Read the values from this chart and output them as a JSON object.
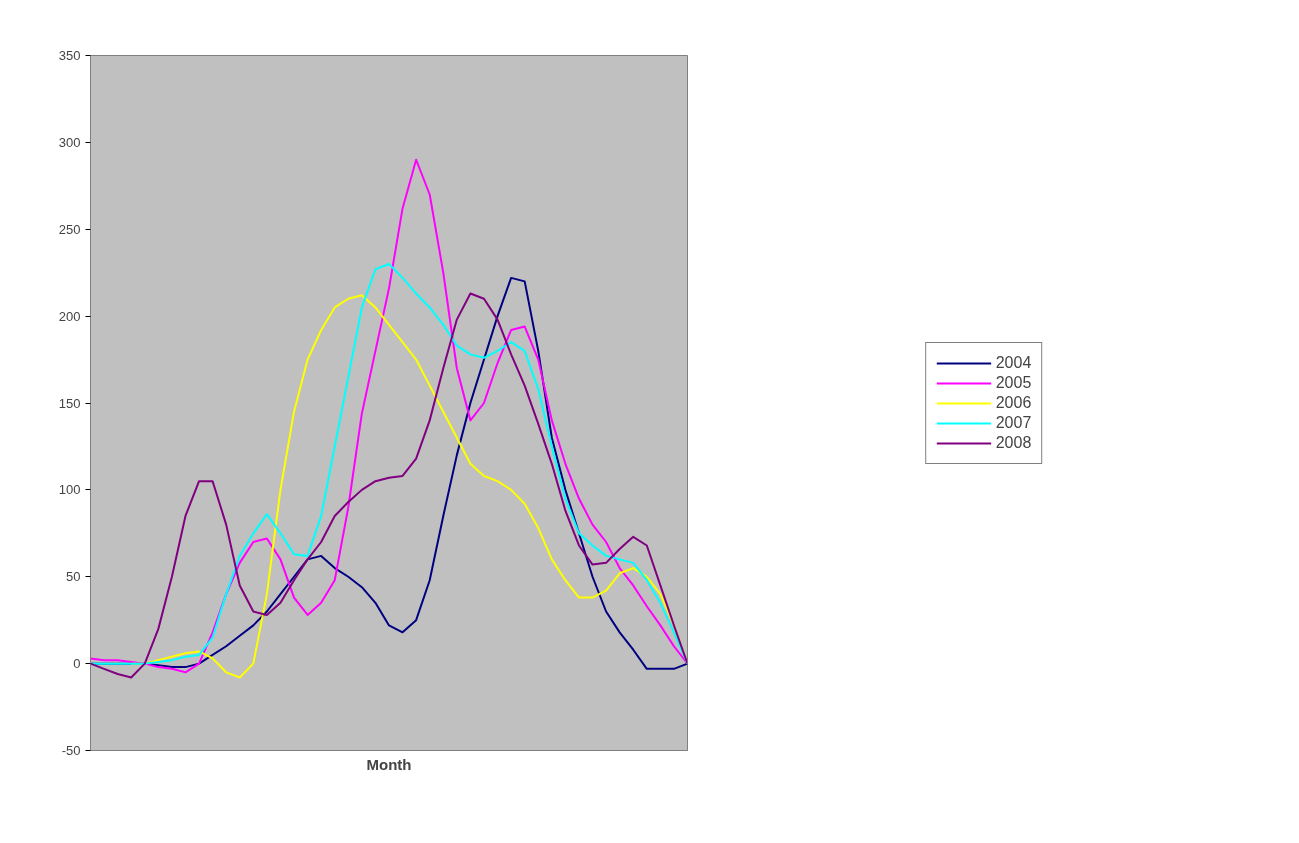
{
  "chart_data": {
    "type": "line",
    "xlabel": "Month",
    "categories": [
      null,
      null,
      null,
      null,
      null,
      null,
      null,
      null,
      null,
      null,
      null,
      null,
      null,
      null,
      null,
      null,
      null,
      null,
      null,
      null,
      null,
      null,
      null,
      null,
      null,
      null,
      null,
      null,
      null,
      null,
      null,
      null,
      null,
      null,
      null,
      null,
      null,
      null,
      null,
      null,
      null,
      null,
      null,
      null,
      null
    ],
    "ylim": [
      -50,
      350
    ],
    "yticks": [
      -50,
      0,
      50,
      100,
      150,
      200,
      250,
      300,
      350
    ],
    "grid": false,
    "legend": "right",
    "line_style": "solid",
    "series": [
      {
        "name": "2004",
        "color": "#000080",
        "values": [
          0,
          0,
          0,
          0,
          0,
          -1,
          -2,
          -2,
          0,
          5,
          10,
          16,
          22,
          30,
          40,
          50,
          60,
          62,
          55,
          50,
          44,
          35,
          22,
          18,
          25,
          48,
          85,
          120,
          150,
          175,
          200,
          222,
          220,
          180,
          130,
          100,
          75,
          50,
          30,
          18,
          8,
          -3,
          -3,
          -3,
          0
        ]
      },
      {
        "name": "2005",
        "color": "#ff00ff",
        "values": [
          3,
          2,
          2,
          1,
          0,
          -2,
          -3,
          -5,
          0,
          18,
          40,
          58,
          70,
          72,
          60,
          38,
          28,
          35,
          48,
          90,
          144,
          180,
          216,
          262,
          290,
          270,
          225,
          170,
          140,
          150,
          173,
          192,
          194,
          175,
          140,
          115,
          95,
          80,
          70,
          55,
          45,
          33,
          22,
          10,
          0
        ]
      },
      {
        "name": "2006",
        "color": "#ffff00",
        "values": [
          null,
          null,
          null,
          0,
          0,
          2,
          4,
          6,
          7,
          3,
          -5,
          -8,
          0,
          40,
          100,
          145,
          175,
          192,
          205,
          210,
          212,
          205,
          195,
          185,
          175,
          160,
          145,
          130,
          115,
          108,
          105,
          100,
          92,
          78,
          60,
          48,
          38,
          38,
          42,
          52,
          55,
          50,
          40,
          22,
          0
        ]
      },
      {
        "name": "2007",
        "color": "#00ffff",
        "values": [
          0,
          0,
          0,
          0,
          0,
          1,
          2,
          4,
          5,
          15,
          40,
          62,
          75,
          86,
          75,
          63,
          62,
          85,
          125,
          165,
          205,
          227,
          230,
          222,
          213,
          205,
          195,
          183,
          178,
          176,
          180,
          185,
          180,
          158,
          125,
          95,
          75,
          68,
          62,
          60,
          58,
          48,
          35,
          18,
          0
        ]
      },
      {
        "name": "2008",
        "color": "#800080",
        "values": [
          0,
          -3,
          -6,
          -8,
          0,
          20,
          50,
          85,
          105,
          105,
          80,
          45,
          30,
          28,
          35,
          48,
          60,
          70,
          85,
          93,
          100,
          105,
          107,
          108,
          118,
          140,
          170,
          198,
          213,
          210,
          198,
          178,
          160,
          138,
          115,
          88,
          68,
          57,
          58,
          66,
          73,
          68,
          45,
          22,
          0
        ]
      }
    ]
  }
}
